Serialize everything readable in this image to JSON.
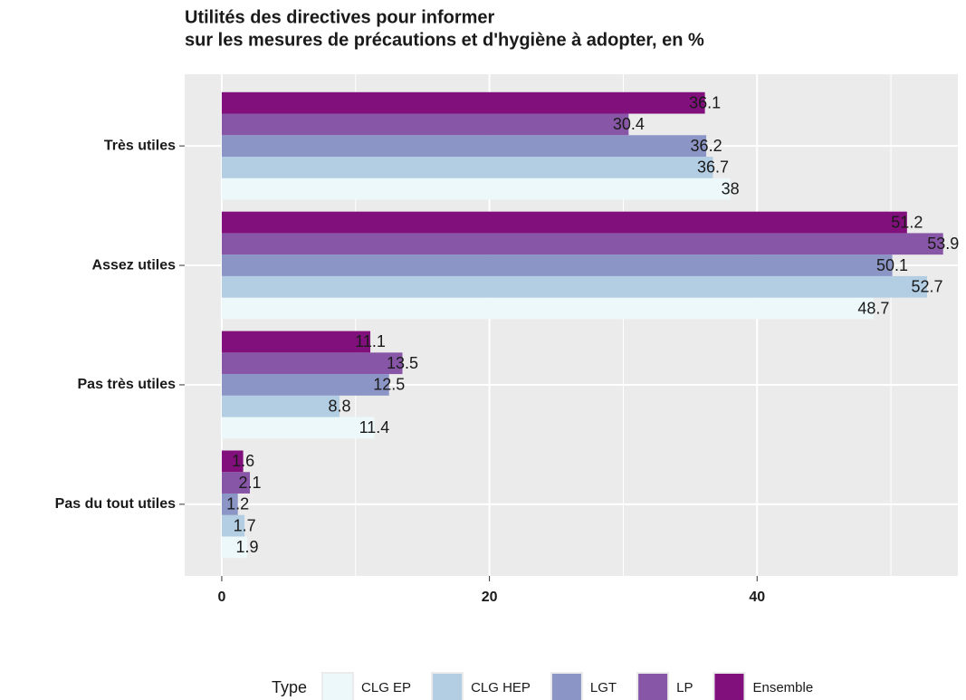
{
  "chart_data": {
    "type": "bar",
    "orientation": "horizontal",
    "title": [
      "Utilités des directives pour informer",
      "sur les mesures de précautions et d'hygiène à adopter, en %"
    ],
    "categories": [
      "Très utiles",
      "Assez utiles",
      "Pas très utiles",
      "Pas du tout utiles"
    ],
    "series": [
      {
        "name": "CLG EP",
        "color": "#edf8fb",
        "values": [
          38,
          48.7,
          11.4,
          1.9
        ]
      },
      {
        "name": "CLG HEP",
        "color": "#b3cde3",
        "values": [
          36.7,
          52.7,
          8.8,
          1.7
        ]
      },
      {
        "name": "LGT",
        "color": "#8c96c6",
        "values": [
          36.2,
          50.1,
          12.5,
          1.2
        ]
      },
      {
        "name": "LP",
        "color": "#8856a7",
        "values": [
          30.4,
          53.9,
          13.5,
          2.1
        ]
      },
      {
        "name": "Ensemble",
        "color": "#810f7c",
        "values": [
          36.1,
          51.2,
          11.1,
          1.6
        ]
      }
    ],
    "legend_title": "Type",
    "legend": "bottom",
    "xlim": [
      -2.77,
      55
    ],
    "xticks": [
      0,
      20,
      40
    ],
    "x_minor_ticks": [
      10,
      30,
      50
    ],
    "grid": true
  }
}
